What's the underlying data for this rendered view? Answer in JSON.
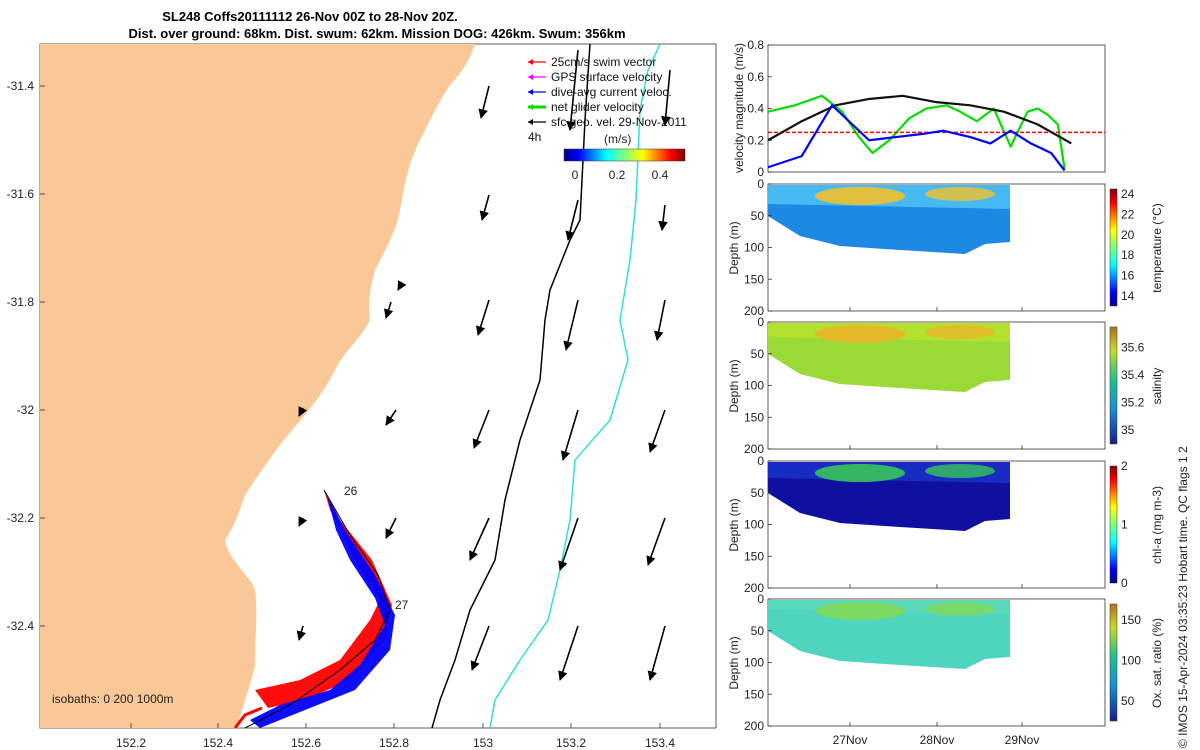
{
  "title_line1": "SL248 Coffs20111112 26-Nov 00Z to 28-Nov 20Z.",
  "title_line2": "Dist. over ground: 68km. Dist. swum: 62km. Mission DOG: 426km. Swum: 356km",
  "legend": {
    "items": [
      {
        "label": "25cm/s swim vector",
        "color": "#ff0000"
      },
      {
        "label": "GPS surface velocity",
        "color": "#ff00ff"
      },
      {
        "label": "dive-avg current veloc.",
        "color": "#0000ff"
      },
      {
        "label": "net glider velocity",
        "color": "#00dd00"
      },
      {
        "label": "sfc geo. vel. 29-Nov-2011",
        "color": "#000000"
      }
    ],
    "interval_label": "4h",
    "colorbar_label": "(m/s)",
    "colorbar_ticks": [
      "0",
      "0.2",
      "0.4"
    ]
  },
  "map": {
    "x_ticks": [
      "152.2",
      "152.4",
      "152.6",
      "152.8",
      "153",
      "153.2",
      "153.4"
    ],
    "y_ticks": [
      "-31.4",
      "-31.6",
      "-31.8",
      "-32",
      "-32.2",
      "-32.4"
    ],
    "isobaths_label": "isobaths: 0   200  1000m",
    "day_labels": [
      "26",
      "27"
    ],
    "land_color": "#f9c896",
    "isobath_colors": {
      "200m": "#000000",
      "1000m": "#33dddd"
    }
  },
  "copyright": "© IMOS 15-Apr-2024 03:35:23 Hobart time. QC flags 1  2",
  "chart_data": [
    {
      "type": "line",
      "ylabel": "velocity magnitude (m/s)",
      "ylim": [
        0,
        0.8
      ],
      "y_ticks": [
        "0",
        "0.2",
        "0.4",
        "0.6",
        "0.8"
      ],
      "x_labels": [
        "27Nov",
        "28Nov",
        "29Nov"
      ],
      "series": [
        {
          "color": "#00dd00",
          "x": [
            0,
            0.08,
            0.16,
            0.22,
            0.27,
            0.31,
            0.36,
            0.42,
            0.47,
            0.53,
            0.57,
            0.62,
            0.67,
            0.72,
            0.77,
            0.8,
            0.83,
            0.86,
            0.88
          ],
          "y": [
            0.38,
            0.42,
            0.48,
            0.38,
            0.22,
            0.12,
            0.2,
            0.34,
            0.4,
            0.42,
            0.38,
            0.32,
            0.4,
            0.16,
            0.38,
            0.4,
            0.36,
            0.3,
            0.02
          ]
        },
        {
          "color": "#ff0000",
          "style": "dashed",
          "x": [
            0,
            1
          ],
          "y": [
            0.25,
            0.25
          ]
        },
        {
          "color": "#111111",
          "x": [
            0,
            0.1,
            0.2,
            0.3,
            0.4,
            0.5,
            0.6,
            0.7,
            0.8,
            0.9
          ],
          "y": [
            0.2,
            0.32,
            0.42,
            0.46,
            0.48,
            0.44,
            0.42,
            0.38,
            0.3,
            0.18
          ]
        },
        {
          "color": "#0000ff",
          "x": [
            0,
            0.1,
            0.19,
            0.25,
            0.3,
            0.38,
            0.46,
            0.52,
            0.6,
            0.66,
            0.72,
            0.78,
            0.84,
            0.88
          ],
          "y": [
            0.03,
            0.1,
            0.42,
            0.3,
            0.2,
            0.22,
            0.24,
            0.26,
            0.22,
            0.18,
            0.26,
            0.18,
            0.12,
            0.01
          ]
        }
      ]
    },
    {
      "type": "heatmap",
      "colorbar_label": "temperature (°C)",
      "ylabel": "Depth (m)",
      "y_ticks": [
        "0",
        "50",
        "100",
        "150",
        "200"
      ],
      "cbar_ticks": [
        "14",
        "16",
        "18",
        "20",
        "22",
        "24"
      ],
      "cbar_range": [
        13,
        24.5
      ]
    },
    {
      "type": "heatmap",
      "colorbar_label": "salinity",
      "ylabel": "Depth (m)",
      "y_ticks": [
        "0",
        "50",
        "100",
        "150",
        "200"
      ],
      "cbar_ticks": [
        "35",
        "35.2",
        "35.4",
        "35.6"
      ],
      "cbar_range": [
        34.9,
        35.75
      ]
    },
    {
      "type": "heatmap",
      "colorbar_label": "chl-a (mg m-3)",
      "ylabel": "Depth (m)",
      "y_ticks": [
        "0",
        "50",
        "100",
        "150",
        "200"
      ],
      "cbar_ticks": [
        "0",
        "1",
        "2"
      ],
      "cbar_range": [
        0,
        2
      ]
    },
    {
      "type": "heatmap",
      "colorbar_label": "Ox. sat. ratio (%)",
      "ylabel": "Depth (m)",
      "y_ticks": [
        "0",
        "50",
        "100",
        "150",
        "200"
      ],
      "cbar_ticks": [
        "50",
        "100",
        "150"
      ],
      "cbar_range": [
        25,
        170
      ]
    }
  ]
}
